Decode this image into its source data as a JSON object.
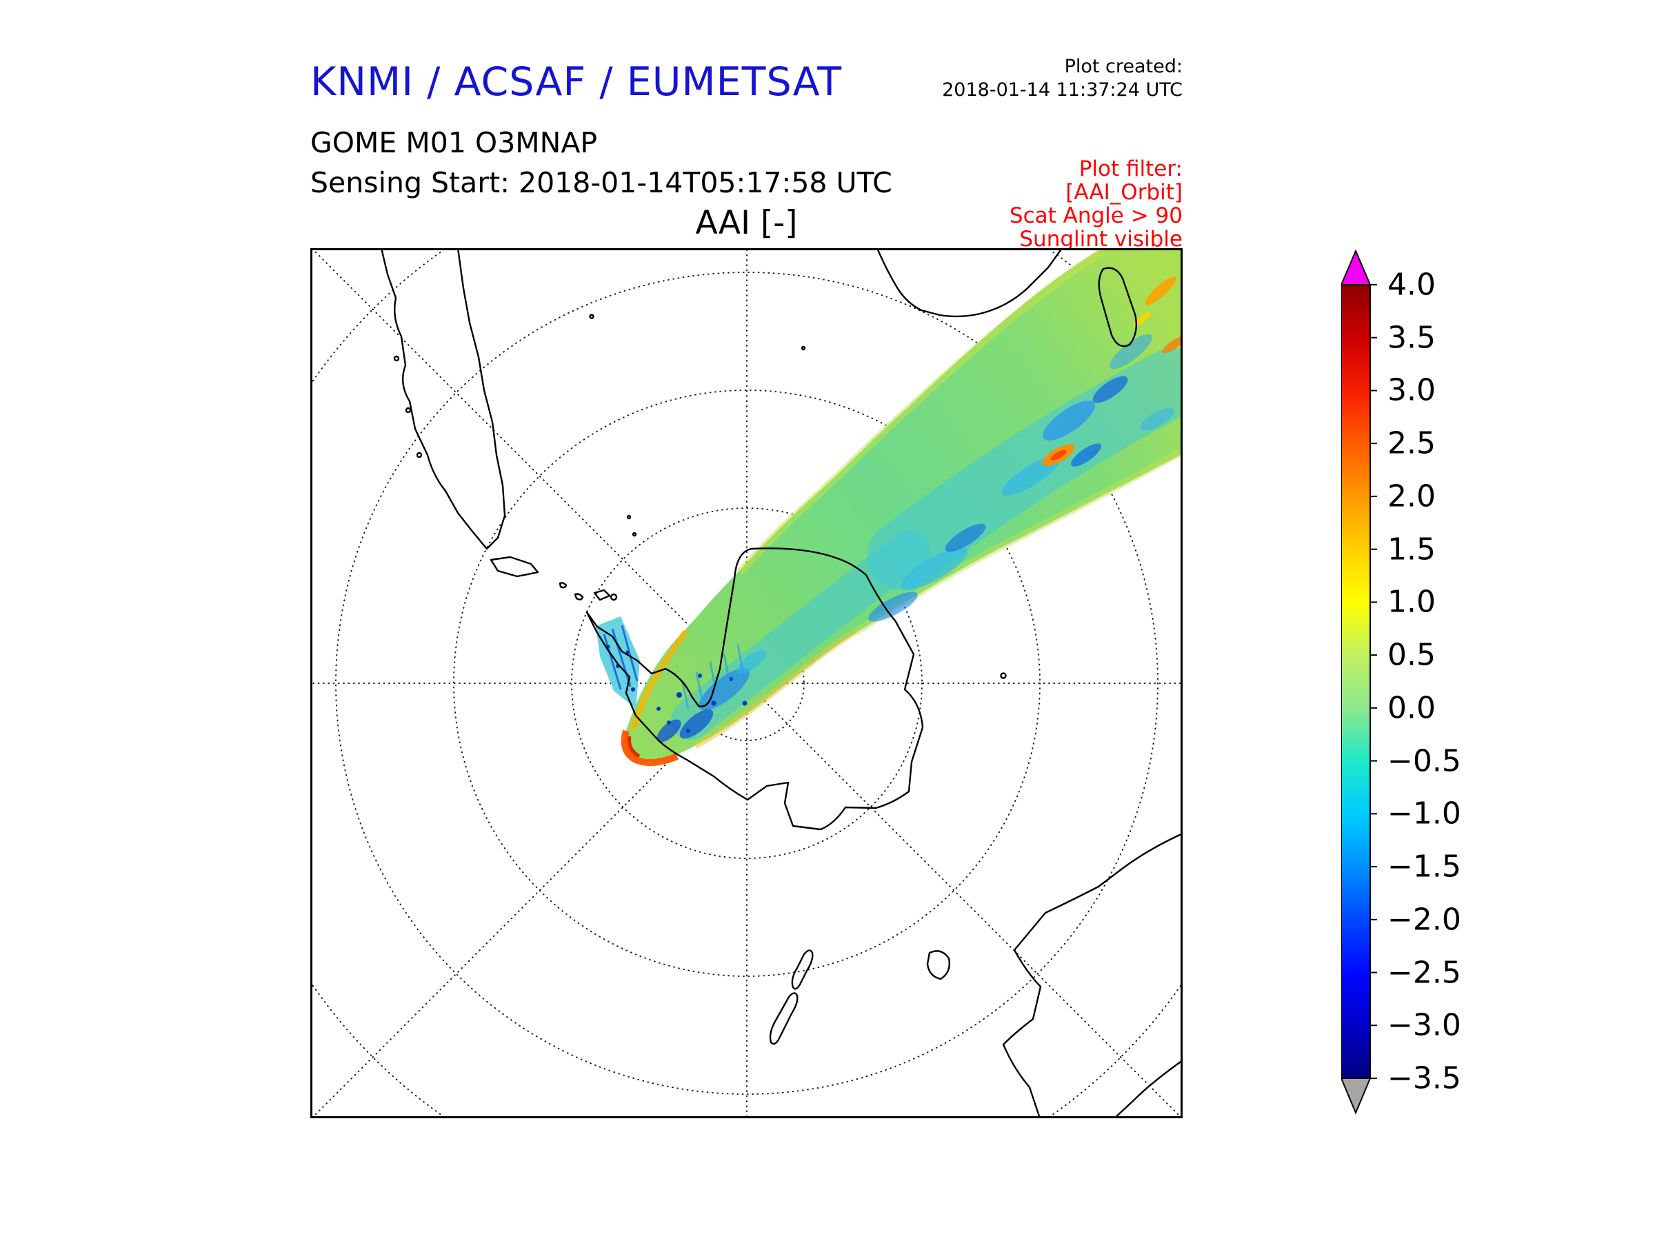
{
  "header": {
    "org_title": "KNMI / ACSAF / EUMETSAT",
    "org_title_color": "#1414d2",
    "plot_created_label": "Plot created:",
    "plot_created_value": "2018-01-14 11:37:24 UTC",
    "product_line": "GOME M01 O3MNAP",
    "sensing_line": "Sensing Start: 2018-01-14T05:17:58 UTC",
    "plot_filter": {
      "label": "Plot filter:",
      "lines": [
        "[AAI_Orbit]",
        "Scat Angle > 90",
        "Sunglint visible"
      ],
      "color": "#ff0000"
    }
  },
  "map": {
    "title": "AAI [-]"
  },
  "colorbar": {
    "vmin": -3.5,
    "vmax": 4.0,
    "tick_labels": [
      "4.0",
      "3.5",
      "3.0",
      "2.5",
      "2.0",
      "1.5",
      "1.0",
      "0.5",
      "0.0",
      "−0.5",
      "−1.0",
      "−1.5",
      "−2.0",
      "−2.5",
      "−3.0",
      "−3.5"
    ],
    "over_color": "#f400f4",
    "under_color": "#a6a6a6",
    "gradient_stops": [
      {
        "value": -3.5,
        "color": "#000080"
      },
      {
        "value": -3.0,
        "color": "#0000c8"
      },
      {
        "value": -2.5,
        "color": "#0008ff"
      },
      {
        "value": -2.0,
        "color": "#0048ff"
      },
      {
        "value": -1.5,
        "color": "#0090ff"
      },
      {
        "value": -1.0,
        "color": "#00ccff"
      },
      {
        "value": -0.5,
        "color": "#20e8c8"
      },
      {
        "value": 0.0,
        "color": "#8ce88c"
      },
      {
        "value": 0.5,
        "color": "#c0f060"
      },
      {
        "value": 1.0,
        "color": "#ffff00"
      },
      {
        "value": 1.5,
        "color": "#ffd000"
      },
      {
        "value": 2.0,
        "color": "#ff9800"
      },
      {
        "value": 2.5,
        "color": "#ff5c00"
      },
      {
        "value": 3.0,
        "color": "#f81e00"
      },
      {
        "value": 3.5,
        "color": "#cc0000"
      },
      {
        "value": 4.0,
        "color": "#8c0000"
      }
    ]
  },
  "chart_data": {
    "type": "heatmap",
    "title": "AAI [-]",
    "description": "GOME M01 (Metop-B) O3MNAP absorbing aerosol index single-orbit swath plotted on a south polar stereographic map with dotted graticule and black coastlines",
    "projection": "south polar stereographic (Antarctica at center)",
    "graticule": {
      "parallel_spacing_deg": 10,
      "meridian_spacing_deg": 45,
      "style": "dotted"
    },
    "colorbar_range": [
      -3.5,
      4.0
    ],
    "colorbar_tick_step": 0.5,
    "colorbar_over_arrow": "magenta (values > 4.0)",
    "colorbar_under_arrow": "gray (values < -3.5)",
    "swath": {
      "path": "broad curved band entering at upper-right corner (Indian Ocean near Madagascar) sweeping southwest across East Antarctica and terminating near the Antarctic Peninsula",
      "dominant_values": "-1.5 to 0.5 (cyan to green)",
      "features": [
        {
          "region": "upper-right corner",
          "value_range": "0.5 to 2.5",
          "appearance": "yellow-green with orange streaks"
        },
        {
          "region": "mid-swath over Indian Ocean",
          "value_range": "-2.5 to -0.5",
          "appearance": "mottled cyan/blue patches"
        },
        {
          "region": "small spot mid-right of swath",
          "value_range": "2 to 3",
          "appearance": "orange ellipse"
        },
        {
          "region": "swath terminus near Antarctic Peninsula",
          "value_range": "1.5 to 3.5",
          "appearance": "orange-red arc along scan edge"
        },
        {
          "region": "narrow left tail strip",
          "value_range": "-3 to -1",
          "appearance": "dark blue speckled striations"
        }
      ]
    }
  }
}
